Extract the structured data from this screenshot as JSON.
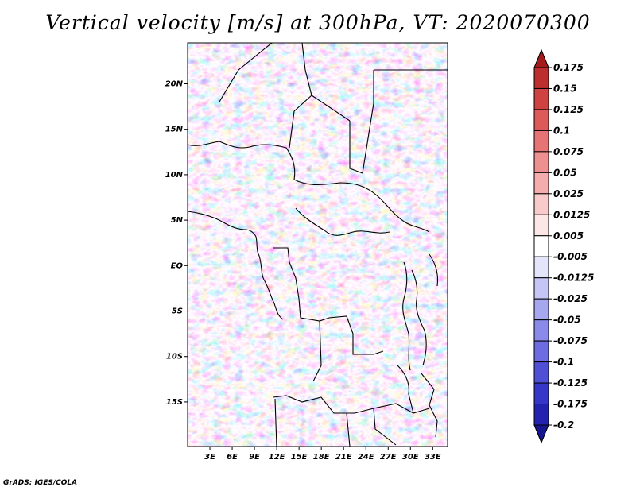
{
  "title": "Vertical velocity [m/s] at 300hPa, VT: 2020070300",
  "credit": "GrADS: IGES/COLA",
  "map": {
    "lat_labels": [
      "20N",
      "15N",
      "10N",
      "5N",
      "EQ",
      "5S",
      "10S",
      "15S"
    ],
    "lat_values": [
      20,
      15,
      10,
      5,
      0,
      -5,
      -10,
      -15
    ],
    "lon_labels": [
      "3E",
      "6E",
      "9E",
      "12E",
      "15E",
      "18E",
      "21E",
      "24E",
      "27E",
      "30E",
      "33E"
    ],
    "lon_values": [
      3,
      6,
      9,
      12,
      15,
      18,
      21,
      24,
      27,
      30,
      33
    ],
    "lon_range": [
      0,
      35
    ],
    "lat_range": [
      -19.9,
      24.5
    ]
  },
  "colorbar": {
    "labels": [
      "0.175",
      "0.15",
      "0.125",
      "0.1",
      "0.075",
      "0.05",
      "0.025",
      "0.0125",
      "0.005",
      "-0.005",
      "-0.0125",
      "-0.025",
      "-0.05",
      "-0.075",
      "-0.1",
      "-0.125",
      "-0.175",
      "-0.2"
    ],
    "colors": [
      "#a51a1a",
      "#bd2e2e",
      "#cf4242",
      "#dc5a5a",
      "#e67474",
      "#ee9090",
      "#f4acac",
      "#f9caca",
      "#fde6e6",
      "#ffffff",
      "#e4e4fb",
      "#c6c6f6",
      "#a7a7f0",
      "#8a8aea",
      "#6d6de1",
      "#5050d6",
      "#3636c8",
      "#2323b0",
      "#16168f"
    ]
  }
}
